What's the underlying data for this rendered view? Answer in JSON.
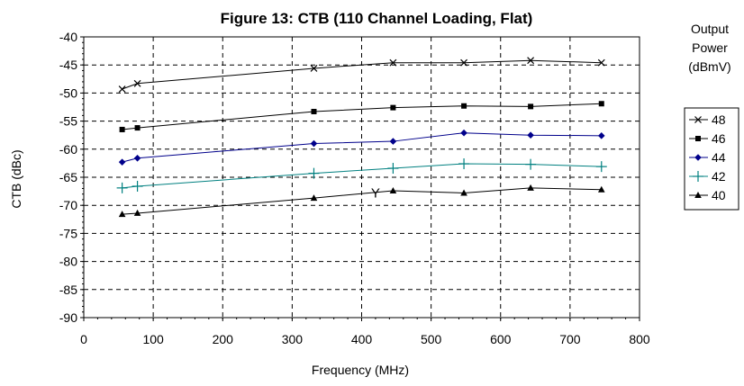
{
  "chart_data": {
    "type": "line",
    "title": "Figure 13:  CTB (110 Channel Loading, Flat)",
    "xlabel": "Frequency (MHz)",
    "ylabel": "CTB (dBc)",
    "xlim": [
      0,
      800
    ],
    "ylim": [
      -90,
      -40
    ],
    "x_ticks": [
      "0",
      "100",
      "200",
      "300",
      "400",
      "500",
      "600",
      "700",
      "800"
    ],
    "y_ticks": [
      "-40",
      "-45",
      "-50",
      "-55",
      "-60",
      "-65",
      "-70",
      "-75",
      "-80",
      "-85",
      "-90"
    ],
    "grid": true,
    "legend_title": [
      "Output",
      "Power",
      "(dBmV)"
    ],
    "legend_position": "right",
    "x": [
      55.25,
      77.25,
      331.25,
      445.25,
      547.25,
      643.25,
      745.25
    ],
    "series": [
      {
        "name": "48",
        "color": "#000000",
        "marker": "x",
        "values": [
          -49.3,
          -48.3,
          -45.6,
          -44.6,
          -44.6,
          -44.2,
          -44.6
        ]
      },
      {
        "name": "46",
        "color": "#000000",
        "marker": "square",
        "values": [
          -56.5,
          -56.2,
          -53.3,
          -52.6,
          -52.3,
          -52.4,
          -51.9
        ]
      },
      {
        "name": "44",
        "color": "#00008b",
        "marker": "diamond",
        "values": [
          -62.3,
          -61.6,
          -59.0,
          -58.6,
          -57.1,
          -57.5,
          -57.6
        ]
      },
      {
        "name": "42",
        "color": "#008080",
        "marker": "plus",
        "values": [
          -66.9,
          -66.6,
          -64.3,
          -63.4,
          -62.6,
          -62.7,
          -63.1
        ]
      },
      {
        "name": "40",
        "color": "#000000",
        "marker": "triangle",
        "values": [
          -71.6,
          -71.4,
          -68.7,
          -67.4,
          -67.8,
          -66.9,
          -67.2
        ]
      }
    ],
    "annotations": [
      {
        "text": "Y",
        "x": 420,
        "y": -67.8
      }
    ]
  }
}
